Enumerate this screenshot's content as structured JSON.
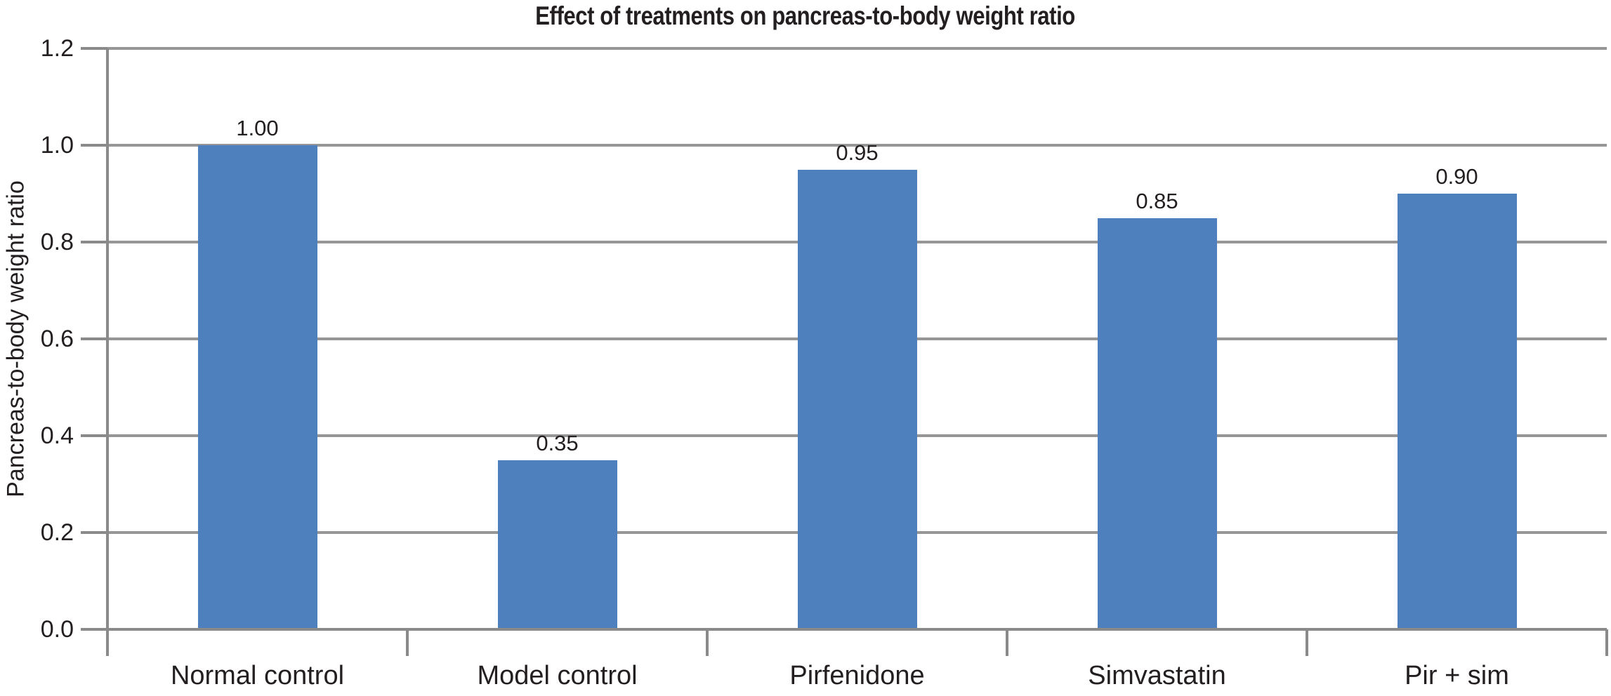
{
  "chart_data": {
    "type": "bar",
    "title": "Effect of treatments on pancreas-to-body weight ratio",
    "xlabel": "",
    "ylabel": "Pancreas-to-body weight ratio",
    "categories": [
      "Normal control",
      "Model control",
      "Pirfenidone",
      "Simvastatin",
      "Pir + sim"
    ],
    "values": [
      1.0,
      0.35,
      0.95,
      0.85,
      0.9
    ],
    "value_labels": [
      "1.00",
      "0.35",
      "0.95",
      "0.85",
      "0.90"
    ],
    "ylim": [
      0,
      1.2
    ],
    "yticks": [
      0.0,
      0.2,
      0.4,
      0.6,
      0.8,
      1.0,
      1.2
    ],
    "ytick_labels": [
      "0.0",
      "0.2",
      "0.4",
      "0.6",
      "0.8",
      "1.0",
      "1.2"
    ],
    "grid": true,
    "legend": false,
    "colors": {
      "bar_fill": "#4e80bd",
      "gridline": "#969696",
      "axis": "#8a8a8a",
      "text": "#231f20"
    }
  }
}
